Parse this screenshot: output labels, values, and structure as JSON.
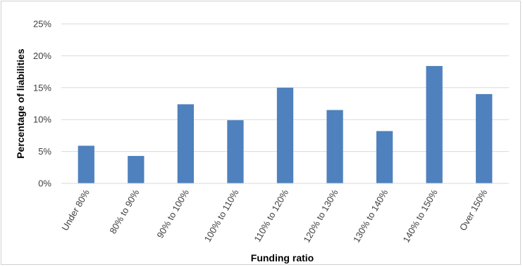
{
  "chart_data": {
    "type": "bar",
    "title": "",
    "xlabel": "Funding ratio",
    "ylabel": "Percentage of liabilities",
    "categories": [
      "Under 80%",
      "80% to 90%",
      "90% to 100%",
      "100% to 110%",
      "110% to 120%",
      "120% to 130%",
      "130% to 140%",
      "140% to 150%",
      "Over 150%"
    ],
    "values": [
      5.9,
      4.3,
      12.4,
      9.9,
      15.0,
      11.5,
      8.2,
      18.4,
      14.0
    ],
    "ylim": [
      0,
      25
    ],
    "yticks": [
      0,
      5,
      10,
      15,
      20,
      25
    ],
    "ytick_labels": [
      "0%",
      "5%",
      "10%",
      "15%",
      "20%",
      "25%"
    ],
    "grid": true,
    "legend": "none",
    "bar_color": "#4e81bd",
    "grid_color": "#d9d9d9"
  }
}
